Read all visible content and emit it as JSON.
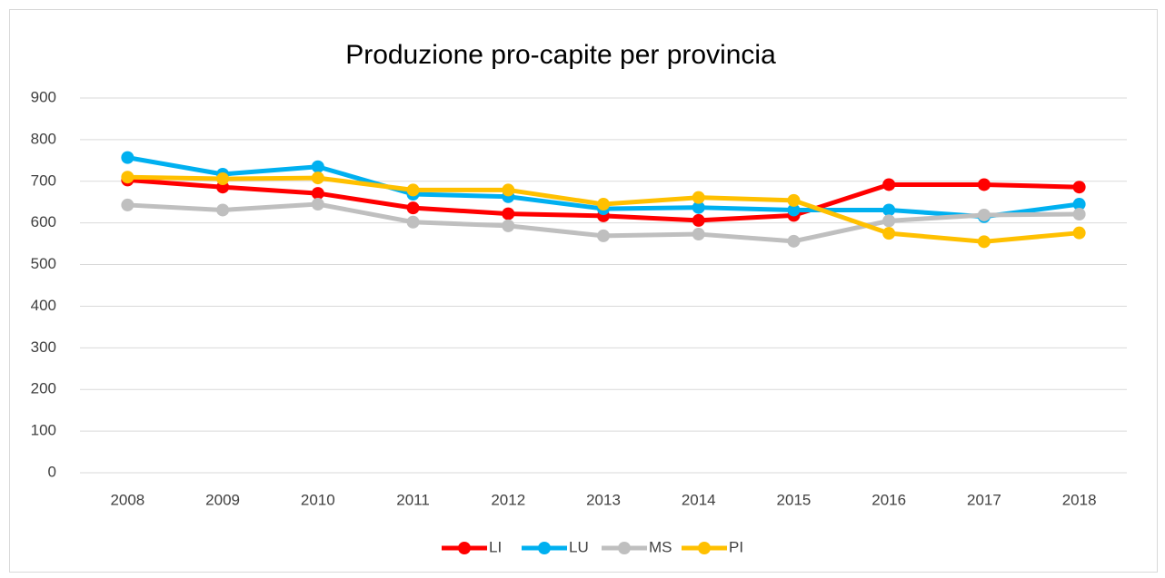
{
  "chart_data": {
    "type": "line",
    "title": "Produzione pro-capite per provincia",
    "categories": [
      "2008",
      "2009",
      "2010",
      "2011",
      "2012",
      "2013",
      "2014",
      "2015",
      "2016",
      "2017",
      "2018"
    ],
    "series": [
      {
        "name": "LI",
        "color": "#ff0000",
        "values": [
          703,
          686,
          671,
          636,
          622,
          617,
          606,
          618,
          692,
          692,
          686
        ]
      },
      {
        "name": "LU",
        "color": "#00b0f0",
        "values": [
          757,
          717,
          735,
          669,
          663,
          634,
          637,
          631,
          631,
          615,
          645
        ]
      },
      {
        "name": "MS",
        "color": "#bfbfbf",
        "values": [
          643,
          631,
          645,
          602,
          593,
          569,
          573,
          556,
          605,
          619,
          621
        ]
      },
      {
        "name": "PI",
        "color": "#ffc000",
        "values": [
          710,
          706,
          708,
          679,
          679,
          645,
          661,
          654,
          575,
          555,
          576
        ]
      }
    ],
    "ylim": [
      0,
      900
    ],
    "yticks": [
      0,
      100,
      200,
      300,
      400,
      500,
      600,
      700,
      800,
      900
    ],
    "grid": true,
    "legend": "bottom"
  }
}
